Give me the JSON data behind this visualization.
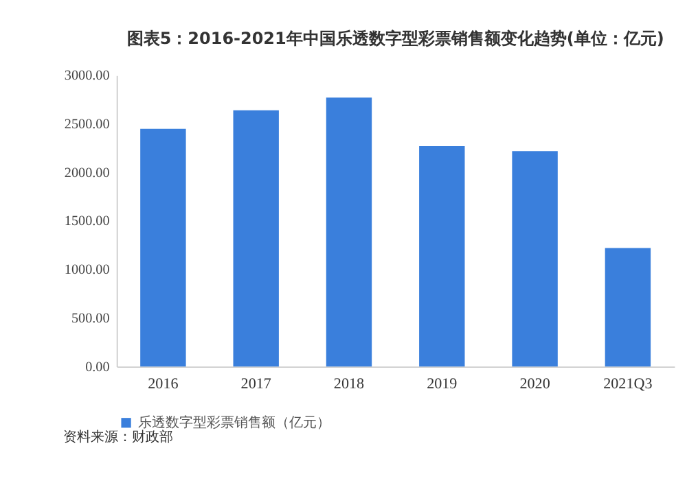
{
  "chart_data": {
    "type": "bar",
    "title": "图表5：2016-2021年中国乐透数字型彩票销售额变化趋势(单位：亿元)",
    "categories": [
      "2016",
      "2017",
      "2018",
      "2019",
      "2020",
      "2021Q3"
    ],
    "series": [
      {
        "name": "乐透数字型彩票销售额（亿元）",
        "color": "#3a7fdc",
        "values": [
          2450,
          2640,
          2770,
          2270,
          2220,
          1220
        ]
      }
    ],
    "ylim": [
      0,
      3000
    ],
    "yticks": [
      {
        "value": 0,
        "label": "0.00"
      },
      {
        "value": 500,
        "label": "500.00"
      },
      {
        "value": 1000,
        "label": "1000.00"
      },
      {
        "value": 1500,
        "label": "1500.00"
      },
      {
        "value": 2000,
        "label": "2000.00"
      },
      {
        "value": 2500,
        "label": "2500.00"
      },
      {
        "value": 3000,
        "label": "3000.00"
      }
    ],
    "grid": false,
    "legend": "bottom",
    "annotations": [
      "资料来源：财政部"
    ]
  }
}
